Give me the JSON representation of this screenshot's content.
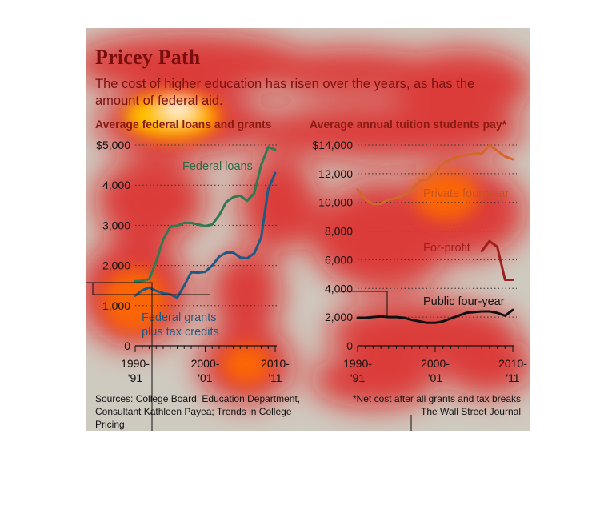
{
  "headline": "Pricey Path",
  "subhead": "The cost of higher education has risen over the years, as has the amount of federal aid.",
  "footnote": "*Net cost after all grants and tax breaks",
  "sources": "Sources: College Board; Education Department, Consultant Kathleen Payea; Trends in College Pricing",
  "credit": "The Wall Street Journal",
  "chart_data": [
    {
      "type": "line",
      "title": "Average federal loans and grants",
      "x_tick_labels": [
        [
          "1990-",
          "'91"
        ],
        [
          "2000-",
          "'01"
        ],
        [
          "2010-",
          "'11"
        ]
      ],
      "x_ticks": [
        1990,
        2000,
        2010
      ],
      "y_ticks": [
        0,
        1000,
        2000,
        3000,
        4000,
        5000
      ],
      "y_tick_labels": [
        "0",
        "1,000",
        "2,000",
        "3,000",
        "4,000",
        "$5,000"
      ],
      "xlim": [
        1990,
        2010
      ],
      "ylim": [
        0,
        5000
      ],
      "grid": true,
      "series": [
        {
          "name": "Federal loans",
          "color": "#2e7a52",
          "x": [
            1990,
            1991,
            1992,
            1993,
            1994,
            1995,
            1996,
            1997,
            1998,
            1999,
            2000,
            2001,
            2002,
            2003,
            2004,
            2005,
            2006,
            2007,
            2008,
            2009,
            2010
          ],
          "y": [
            1610,
            1620,
            1660,
            2100,
            2650,
            2960,
            2990,
            3060,
            3060,
            3020,
            2980,
            3020,
            3250,
            3580,
            3700,
            3740,
            3610,
            3800,
            4500,
            4950,
            4880
          ]
        },
        {
          "name": "Federal grants plus tax credits",
          "label_lines": [
            "Federal grants",
            "plus tax credits"
          ],
          "color": "#1d5a85",
          "x": [
            1990,
            1991,
            1992,
            1993,
            1994,
            1995,
            1996,
            1997,
            1998,
            1999,
            2000,
            2001,
            2002,
            2003,
            2004,
            2005,
            2006,
            2007,
            2008,
            2009,
            2010
          ],
          "y": [
            1250,
            1380,
            1450,
            1370,
            1310,
            1280,
            1200,
            1500,
            1830,
            1820,
            1840,
            2000,
            2220,
            2320,
            2320,
            2200,
            2180,
            2300,
            2700,
            3900,
            4300
          ]
        }
      ]
    },
    {
      "type": "line",
      "title": "Average annual tuition students pay*",
      "x_tick_labels": [
        [
          "1990-",
          "'91"
        ],
        [
          "2000-",
          "'01"
        ],
        [
          "2010-",
          "'11"
        ]
      ],
      "x_ticks": [
        1990,
        2000,
        2010
      ],
      "y_ticks": [
        0,
        2000,
        4000,
        6000,
        8000,
        10000,
        12000,
        14000
      ],
      "y_tick_labels": [
        "0",
        "2,000",
        "4,000",
        "6,000",
        "8,000",
        "10,000",
        "12,000",
        "$14,000"
      ],
      "xlim": [
        1990,
        2010
      ],
      "ylim": [
        0,
        14000
      ],
      "grid": true,
      "series": [
        {
          "name": "Private four-year",
          "color": "#d2682a",
          "x": [
            1990,
            1991,
            1992,
            1993,
            1994,
            1995,
            1996,
            1997,
            1998,
            1999,
            2000,
            2001,
            2002,
            2003,
            2004,
            2005,
            2006,
            2007,
            2008,
            2009,
            2010
          ],
          "y": [
            10900,
            10200,
            9900,
            9900,
            10200,
            10300,
            10500,
            10900,
            11500,
            11600,
            12100,
            12700,
            13000,
            13200,
            13300,
            13400,
            13400,
            14000,
            13600,
            13200,
            13000
          ]
        },
        {
          "name": "For-profit",
          "color": "#a01e1e",
          "x": [
            2006,
            2007,
            2008,
            2009,
            2010
          ],
          "y": [
            6600,
            7300,
            6900,
            4600,
            4600
          ]
        },
        {
          "name": "Public four-year",
          "color": "#111111",
          "x": [
            1990,
            1991,
            1992,
            1993,
            1994,
            1995,
            1996,
            1997,
            1998,
            1999,
            2000,
            2001,
            2002,
            2003,
            2004,
            2005,
            2006,
            2007,
            2008,
            2009,
            2010
          ],
          "y": [
            1950,
            1950,
            2000,
            2050,
            2000,
            2000,
            1950,
            1800,
            1700,
            1600,
            1600,
            1700,
            1900,
            2100,
            2300,
            2350,
            2400,
            2400,
            2300,
            2100,
            2500
          ]
        }
      ]
    }
  ]
}
